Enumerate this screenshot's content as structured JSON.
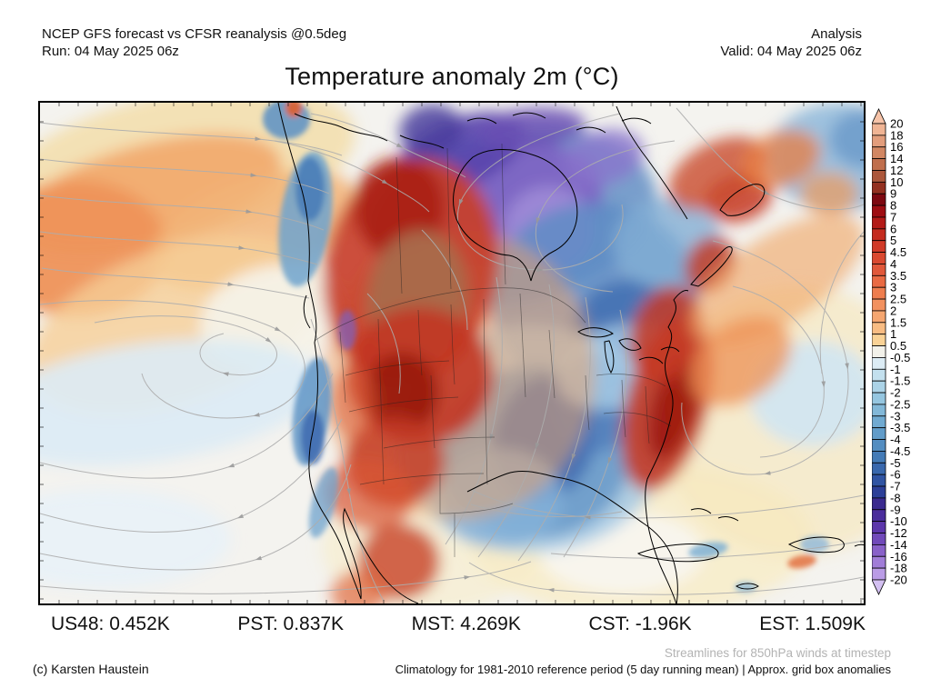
{
  "header": {
    "left_line1": "NCEP GFS forecast vs CFSR reanalysis @0.5deg",
    "left_line2": "Run: 04 May 2025 06z",
    "right_line1": "Analysis",
    "right_line2": "Valid: 04 May 2025 06z"
  },
  "title": "Temperature anomaly 2m (°C)",
  "stats": [
    {
      "region": "US48",
      "value": "0.452K",
      "text": "US48: 0.452K"
    },
    {
      "region": "PST",
      "value": "0.837K",
      "text": "PST: 0.837K"
    },
    {
      "region": "MST",
      "value": "4.269K",
      "text": "MST: 4.269K"
    },
    {
      "region": "CST",
      "value": "-1.96K",
      "text": "CST: -1.96K"
    },
    {
      "region": "EST",
      "value": "1.509K",
      "text": "EST: 1.509K"
    }
  ],
  "footer": {
    "credit": "(c) Karsten Haustein",
    "streamlines_note": "Streamlines for 850hPa winds at timestep",
    "climatology_note": "Climatology for 1981-2010 reference period (5 day running mean) | Approx. grid box anomalies"
  },
  "colorbar": {
    "unit": "°C",
    "labels": [
      "20",
      "18",
      "16",
      "14",
      "12",
      "10",
      "9",
      "8",
      "7",
      "6",
      "5",
      "4.5",
      "4",
      "3.5",
      "3",
      "2.5",
      "2",
      "1.5",
      "1",
      "0.5",
      "-0.5",
      "-1",
      "-1.5",
      "-2",
      "-2.5",
      "-3",
      "-3.5",
      "-4",
      "-4.5",
      "-5",
      "-6",
      "-7",
      "-8",
      "-9",
      "-10",
      "-12",
      "-14",
      "-16",
      "-18",
      "-20"
    ],
    "colors": [
      "#F6C3A8",
      "#F0B494",
      "#E29D7C",
      "#D28763",
      "#C06F4D",
      "#AC573B",
      "#933020",
      "#7D0810",
      "#9E0D12",
      "#B31A17",
      "#C42B1E",
      "#D13A28",
      "#DA4930",
      "#E1583A",
      "#E96A43",
      "#EE7D4E",
      "#F2915F",
      "#F5A670",
      "#F8BC83",
      "#F9D296",
      "#F2F1EA",
      "#DCECF5",
      "#C3E0EE",
      "#ABD3E7",
      "#95C6E0",
      "#82B8D8",
      "#70AAD1",
      "#619CC9",
      "#538DC1",
      "#447BB7",
      "#3968AD",
      "#3054A3",
      "#2C3F98",
      "#3A2A8F",
      "#4A2D9C",
      "#5C36AB",
      "#714ABA",
      "#8961C9",
      "#A17DD8",
      "#BA9CE6",
      "#D3C0F1"
    ]
  },
  "map": {
    "background": "#F4F3EF",
    "coast_color": "#000000",
    "border_color": "#222222",
    "stream_color": "#ADADAD",
    "blobs_large": [
      [
        150,
        70,
        200,
        80,
        -12,
        "#F3DFAE",
        0.9
      ],
      [
        120,
        100,
        150,
        55,
        -15,
        "#F2A96C",
        0.9
      ],
      [
        40,
        160,
        100,
        75,
        0,
        "#EE9258",
        0.95
      ],
      [
        235,
        140,
        120,
        55,
        -20,
        "#F2B478",
        0.85
      ],
      [
        150,
        245,
        170,
        85,
        -20,
        "#F6CE97",
        0.8
      ],
      [
        255,
        235,
        80,
        55,
        -15,
        "#F5F2E8",
        0.95
      ],
      [
        120,
        330,
        190,
        65,
        -8,
        "#DBEBF5",
        0.9
      ],
      [
        70,
        480,
        140,
        55,
        0,
        "#E7F1F8",
        0.85
      ],
      [
        430,
        490,
        120,
        70,
        0,
        "#F7ECC8",
        0.6
      ],
      [
        660,
        480,
        190,
        85,
        0,
        "#F7ECC6",
        0.8
      ],
      [
        830,
        350,
        150,
        150,
        0,
        "#F6E7BC",
        0.65
      ],
      [
        640,
        495,
        90,
        45,
        0,
        "#F7F5EF",
        0.9
      ],
      [
        520,
        125,
        160,
        95,
        -10,
        "#6C95C8",
        0.9
      ],
      [
        520,
        112,
        100,
        68,
        -12,
        "#7D64C4",
        0.95
      ],
      [
        560,
        140,
        50,
        48,
        0,
        "#9D89D6",
        0.95
      ],
      [
        462,
        55,
        75,
        38,
        -22,
        "#5844AC",
        0.9
      ],
      [
        610,
        215,
        115,
        105,
        0,
        "#5E8CC4",
        0.85
      ],
      [
        650,
        255,
        65,
        60,
        10,
        "#3F6BB0",
        0.8
      ],
      [
        690,
        155,
        60,
        50,
        0,
        "#82AED4",
        0.8
      ],
      [
        540,
        370,
        150,
        125,
        0,
        "#A5CAE5",
        0.85
      ],
      [
        545,
        385,
        105,
        95,
        0,
        "#6B9CCB",
        0.9
      ],
      [
        555,
        370,
        55,
        70,
        15,
        "#3E69B0",
        0.85
      ],
      [
        610,
        330,
        45,
        55,
        0,
        "#4C77B8",
        0.7
      ],
      [
        640,
        290,
        75,
        45,
        -15,
        "#AFD3E9",
        0.75
      ],
      [
        505,
        435,
        70,
        55,
        0,
        "#86B3DA",
        0.8
      ],
      [
        880,
        60,
        80,
        60,
        0,
        "#93BBDB",
        0.9
      ],
      [
        908,
        40,
        40,
        32,
        0,
        "#6D9CCA",
        0.85
      ],
      [
        850,
        320,
        70,
        58,
        0,
        "#CFE4F2",
        0.9
      ],
      [
        460,
        300,
        150,
        160,
        10,
        "#EFA468",
        0.5
      ],
      [
        408,
        185,
        95,
        125,
        12,
        "#C8402A",
        0.92
      ],
      [
        395,
        115,
        50,
        55,
        0,
        "#A81F12",
        0.85
      ],
      [
        415,
        215,
        55,
        75,
        8,
        "#A96C4C",
        0.95
      ],
      [
        418,
        300,
        80,
        75,
        5,
        "#C23522",
        0.9
      ],
      [
        398,
        320,
        40,
        45,
        0,
        "#921409",
        0.8
      ],
      [
        390,
        395,
        55,
        50,
        0,
        "#C33A24",
        0.85
      ],
      [
        362,
        432,
        50,
        38,
        10,
        "#D85633",
        0.7
      ],
      [
        345,
        330,
        25,
        40,
        0,
        "#D85A33",
        0.55
      ],
      [
        395,
        505,
        45,
        42,
        0,
        "#C74326",
        0.8
      ],
      [
        350,
        540,
        30,
        25,
        0,
        "#E0683C",
        0.7
      ],
      [
        690,
        330,
        45,
        100,
        15,
        "#C23A26",
        0.9
      ],
      [
        697,
        335,
        24,
        60,
        15,
        "#99150A",
        0.8
      ],
      [
        688,
        255,
        38,
        55,
        18,
        "#C53A26",
        0.85
      ],
      [
        737,
        178,
        26,
        32,
        30,
        "#C13B26",
        0.85
      ],
      [
        768,
        105,
        38,
        26,
        -15,
        "#C63B25",
        0.85
      ],
      [
        745,
        78,
        58,
        34,
        -28,
        "#C94A2C",
        0.8
      ],
      [
        815,
        62,
        45,
        30,
        -20,
        "#E87E42",
        0.75
      ],
      [
        868,
        100,
        32,
        24,
        0,
        "#EE9B5B",
        0.7
      ],
      [
        810,
        195,
        110,
        48,
        -33,
        "#F0A96B",
        0.65
      ],
      [
        770,
        285,
        62,
        42,
        -35,
        "#EE9054",
        0.75
      ],
      [
        430,
        30,
        35,
        28,
        -10,
        "#4A3E9E",
        0.85
      ],
      [
        540,
        28,
        60,
        22,
        -5,
        "#6A50B4",
        0.85
      ],
      [
        620,
        60,
        45,
        30,
        -15,
        "#8A74CC",
        0.8
      ]
    ],
    "blobs_small": [
      [
        292,
        128,
        28,
        75,
        8,
        "#6FA3CE",
        0.85
      ],
      [
        297,
        95,
        16,
        35,
        0,
        "#4478B6",
        0.8
      ],
      [
        299,
        340,
        20,
        60,
        8,
        "#5F95C6",
        0.85
      ],
      [
        300,
        368,
        13,
        30,
        0,
        "#3B66AE",
        0.8
      ],
      [
        312,
        440,
        13,
        40,
        15,
        "#6FA3CE",
        0.75
      ],
      [
        271,
        18,
        26,
        22,
        0,
        "#5B8FC4",
        0.85
      ],
      [
        279,
        6,
        9,
        10,
        0,
        "#E06030",
        0.9
      ],
      [
        735,
        492,
        22,
        8,
        -10,
        "#7FB0D4",
        0.85
      ],
      [
        852,
        486,
        16,
        9,
        0,
        "#8FB8DA",
        0.8
      ],
      [
        838,
        505,
        16,
        7,
        -10,
        "#E2703E",
        0.85
      ],
      [
        776,
        533,
        12,
        6,
        0,
        "#7FB0D4",
        0.7
      ],
      [
        338,
        250,
        10,
        22,
        0,
        "#7C5FC0",
        0.7
      ]
    ],
    "coastlines": [
      "M262,0 C268,30 278,62 288,96 C296,126 298,162 295,196 C301,226 307,242 302,264 C308,302 306,336 298,372 C293,406 296,426 312,452 C322,468 330,482 336,500 C342,518 348,532 353,546 C354,528 348,508 342,492 C336,474 331,459 335,447 C345,469 356,492 370,512 C382,530 398,544 416,551",
      "M470,428 C488,419 502,412 514,408 C532,402 550,408 568,412 C582,414 602,420 616,430 C636,442 652,455 664,463 C676,471 688,483 695,499 C701,515 703,535 700,552 C696,538 688,523 682,509 C676,494 671,479 668,461 C666,444 664,429 668,414 C676,397 685,381 690,361 C696,341 698,329 694,317 C690,305 686,295 688,283 C692,267 699,257 691,247 C697,235 703,227 697,217 C703,209 709,205 713,207",
      "M716,200 C726,188 740,174 752,162 C758,156 764,158 760,166 C752,180 736,194 724,202 Z",
      "M748,118 C756,104 770,94 784,90 C796,88 800,96 794,106 C786,118 770,126 756,124 Z",
      "M712,128 C700,108 684,84 668,62 C654,44 642,24 634,4",
      "M476,60 C456,78 450,104 458,128 C468,152 492,166 516,168 C528,170 536,180 540,196 C544,180 552,170 564,164 C584,154 594,134 590,110 C586,86 568,66 544,58 C522,50 494,48 476,60 Z",
      "M280,12 C300,22 318,20 334,28 C352,36 368,34 382,42",
      "M396,36 C412,44 428,42 444,50",
      "M470,20 C482,15 494,17 502,23",
      "M520,14 C534,9 546,11 556,17",
      "M590,30 C602,25 614,27 622,33",
      "M640,20 C652,15 664,17 672,23",
      "M592,252 C604,245 620,247 630,254 C620,259 604,260 592,252 Z",
      "M626,262 C631,274 633,288 628,297 C623,288 621,274 621,263 Z",
      "M637,262 C647,257 657,261 661,270 C653,275 642,272 637,262 Z",
      "M659,283 C669,278 679,280 685,287",
      "M683,272 C691,267 699,269 703,274",
      "M658,496 C680,488 706,484 728,486 C742,488 750,494 744,500 C728,506 702,506 680,502 C670,500 662,499 658,496 Z",
      "M824,486 C840,478 862,476 878,480 C888,484 886,492 874,494 C858,496 838,494 824,486 Z",
      "M766,532 C774,528 784,528 790,532 C784,536 772,536 766,532 Z",
      "M716,448 C724,445 732,447 738,452",
      "M746,457 C754,454 762,456 768,460",
      "M896,488 C902,485 908,486 912,490",
      "M293,212 C288,224 290,238 297,248"
    ],
    "borders": [
      "M302,262 C340,236 400,216 470,206 C530,200 570,204 600,242",
      "M330,252 C332,278 334,304 336,330",
      "M372,238 C374,298 376,360 378,420",
      "M416,228 C417,252 418,276 420,300",
      "M452,222 C453,252 454,281 456,310",
      "M488,216 C489,284 490,352 492,420",
      "M430,300 C431,327 432,354 434,380",
      "M336,300 C370,290 410,286 450,284",
      "M340,340 C380,330 420,326 460,324",
      "M378,380 C420,372 460,368 500,368",
      "M352,420 C392,412 440,408 488,408",
      "M440,408 C440,423 440,438 440,452 C470,452 500,448 520,441",
      "M456,452 C456,468 456,484 456,500",
      "M392,60 C394,110 396,160 398,210",
      "M448,50 C449,102 450,154 452,205",
      "M508,45 C509,97 510,149 512,200",
      "M612,300 C640,296 668,300 688,312",
      "M620,342 C650,338 676,344 694,356",
      "M600,300 C601,320 602,340 604,360",
      "M640,305 C641,326 642,347 644,368",
      "M666,312 C667,333 668,354 670,375",
      "M560,250 C562,275 564,300 566,325",
      "M528,210 C530,248 532,286 534,324"
    ],
    "streamlines": [
      "M0,22 C80,32 160,34 240,40 C280,44 310,50 332,58",
      "M0,62 C80,72 160,72 235,80 C270,84 298,92 318,100",
      "M0,102 C80,112 160,112 230,120 C265,125 292,132 312,140",
      "M0,142 C75,152 150,152 222,160 C258,165 284,172 305,178",
      "M2,182 C70,192 140,192 210,200 C245,205 272,210 296,215",
      "M60,242 C130,228 210,234 252,262 C276,282 246,306 204,298 C168,290 166,262 202,254",
      "M0,222 C90,212 195,218 262,250 C308,276 300,330 238,344 C172,356 120,330 112,298",
      "M322,298 C300,340 268,380 210,400 C150,420 80,416 0,396",
      "M332,348 C310,390 278,430 220,456 C150,484 70,472 0,452",
      "M342,398 C330,440 300,480 240,502 C170,524 80,512 0,496",
      "M0,532 C150,546 330,542 470,522 C500,518 520,512 540,505",
      "M298,238 C318,298 330,368 340,428 C348,478 360,518 378,548",
      "M258,42 C300,50 340,64 380,88 C400,100 416,108 428,120",
      "M298,12 C330,18 362,30 396,48 C422,62 448,70 468,82",
      "M638,12 C560,30 484,62 462,110 C448,154 492,184 550,184 C612,184 648,150 640,112",
      "M698,42 C622,52 562,82 547,130 C537,170 572,204 630,208",
      "M560,200 C570,258 566,318 546,378 C532,424 512,460 482,500",
      "M600,214 C610,270 606,330 586,390 C572,434 552,468 526,504",
      "M638,228 C650,284 646,340 626,394 C612,436 596,468 576,500",
      "M502,192 C512,250 510,310 496,368 C486,414 470,450 446,486",
      "M740,152 C820,172 878,222 888,290 C896,354 858,398 800,408 C742,416 702,380 706,330",
      "M762,202 C820,216 858,256 862,310 C866,358 834,388 792,390",
      "M906,142 C872,180 852,240 860,298",
      "M906,432 C800,452 700,460 602,456 C544,452 504,440 474,426",
      "M906,482 C790,502 672,506 562,496",
      "M906,522 C800,542 682,546 562,536 C524,532 494,520 472,506",
      "M474,442 C522,456 582,460 640,450",
      "M700,6 C730,40 760,80 800,100 C848,122 888,120 906,112",
      "M360,210 C390,240 400,280 395,320",
      "M420,140 C450,170 470,210 470,250"
    ]
  }
}
